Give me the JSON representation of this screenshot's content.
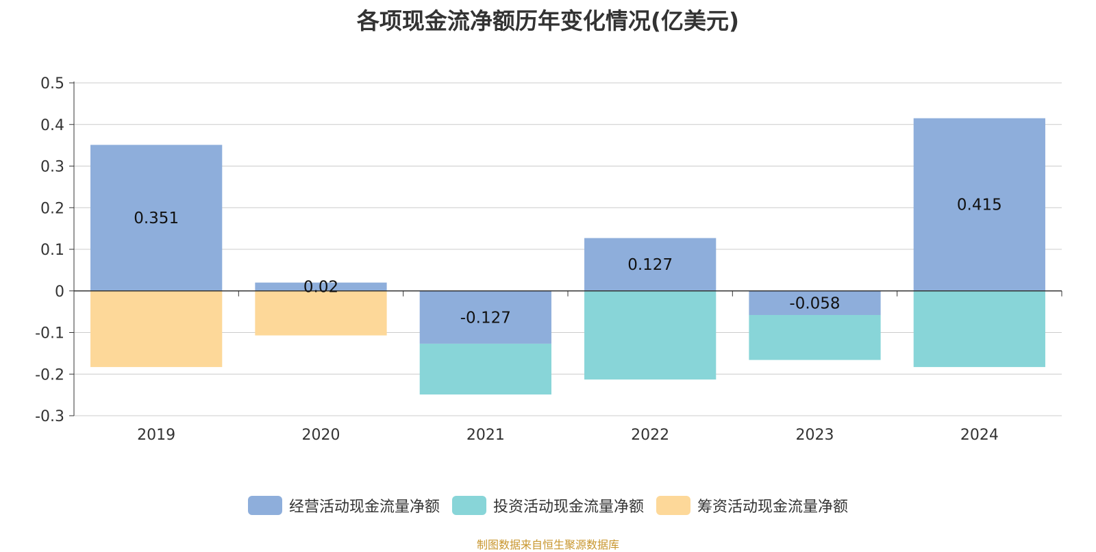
{
  "chart_data": {
    "type": "bar",
    "stacked": true,
    "title": "各项现金流净额历年变化情况(亿美元)",
    "categories": [
      "2019",
      "2020",
      "2021",
      "2022",
      "2023",
      "2024"
    ],
    "series": [
      {
        "name": "经营活动现金流量净额",
        "color": "#8eaedb",
        "values": [
          0.351,
          0.02,
          -0.127,
          0.127,
          -0.058,
          0.415
        ],
        "labels": [
          "0.351",
          "0.02",
          "-0.127",
          "0.127",
          "-0.058",
          "0.415"
        ]
      },
      {
        "name": "投资活动现金流量净额",
        "color": "#88d5d8",
        "values": [
          0,
          0,
          -0.122,
          -0.213,
          -0.108,
          -0.183
        ]
      },
      {
        "name": "筹资活动现金流量净额",
        "color": "#fdd899",
        "values": [
          -0.183,
          -0.107,
          0,
          0,
          0,
          0
        ]
      }
    ],
    "yticks": [
      "0.5",
      "0.4",
      "0.3",
      "0.2",
      "0.1",
      "0",
      "-0.1",
      "-0.2",
      "-0.3"
    ],
    "ylim": [
      -0.3,
      0.5
    ],
    "grid": true,
    "legend_position": "bottom-center"
  },
  "source_note": "制图数据来自恒生聚源数据库"
}
